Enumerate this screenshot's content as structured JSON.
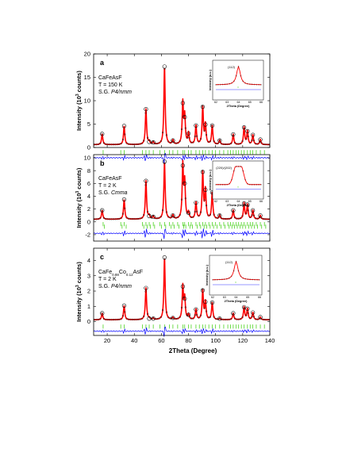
{
  "chart_data": [
    {
      "type": "line",
      "panel_label": "a",
      "ylabel_parts": [
        "Intensity (10",
        "3",
        " counts)"
      ],
      "xlim": [
        10,
        140
      ],
      "ylim": [
        0,
        20
      ],
      "yticks": [
        0,
        5,
        10,
        15,
        20
      ],
      "info_lines": [
        [
          {
            "t": "CaFeAsF"
          }
        ],
        [
          {
            "t": "T = 150 K"
          }
        ],
        [
          {
            "t": "S.G. "
          },
          {
            "t": "P4/nmm",
            "i": true
          }
        ]
      ],
      "peaks": [
        {
          "x": 16.3,
          "y": 2.9
        },
        {
          "x": 32.5,
          "y": 4.6
        },
        {
          "x": 48.6,
          "y": 8.2
        },
        {
          "x": 51,
          "y": 1.2
        },
        {
          "x": 54,
          "y": 1.1
        },
        {
          "x": 62.3,
          "y": 17.3
        },
        {
          "x": 68.5,
          "y": 1.5
        },
        {
          "x": 75.8,
          "y": 9.5
        },
        {
          "x": 77.2,
          "y": 6.5
        },
        {
          "x": 80,
          "y": 3.0
        },
        {
          "x": 85.5,
          "y": 4.7
        },
        {
          "x": 90.5,
          "y": 8.7
        },
        {
          "x": 92.5,
          "y": 4.9
        },
        {
          "x": 97.5,
          "y": 4.7
        },
        {
          "x": 103,
          "y": 1.5
        },
        {
          "x": 113,
          "y": 2.8
        },
        {
          "x": 121,
          "y": 4.3
        },
        {
          "x": 123.5,
          "y": 3.5
        },
        {
          "x": 127.5,
          "y": 2.7
        },
        {
          "x": 133,
          "y": 1.7
        }
      ],
      "background": 0.6,
      "bragg_rows": [
        [
          17,
          30,
          32.5,
          46,
          48.6,
          51,
          54,
          59,
          62.3,
          66,
          68.5,
          72,
          75.8,
          77.2,
          80,
          82,
          85.5,
          88,
          90.5,
          92.5,
          95,
          97.5,
          100,
          103,
          106,
          109,
          111,
          113,
          115,
          117,
          119,
          121,
          123.5,
          125.5,
          127.5,
          130,
          133,
          136
        ]
      ],
      "bragg_y": [
        -1.0
      ],
      "diff_y": -2.2,
      "inset": {
        "ylabel": "Intensity (a.u.)",
        "xlabel": "2Theta (Degree)",
        "xticks": [
          "62",
          "63",
          "64",
          "65",
          "66"
        ],
        "peak_label": "(112)",
        "split": false
      }
    },
    {
      "type": "line",
      "panel_label": "b",
      "ylabel_parts": [
        "Intensity (10",
        "3",
        " counts)"
      ],
      "xlim": [
        10,
        140
      ],
      "ylim": [
        -3,
        10.5
      ],
      "yticks": [
        -2,
        0,
        2,
        4,
        6,
        8,
        10
      ],
      "info_lines": [
        [
          {
            "t": "CaFeAsF"
          }
        ],
        [
          {
            "t": "T = 2 K"
          }
        ],
        [
          {
            "t": "S.G. "
          },
          {
            "t": "Cmma",
            "i": true
          }
        ]
      ],
      "peaks": [
        {
          "x": 16.3,
          "y": 1.8
        },
        {
          "x": 32.5,
          "y": 3.5
        },
        {
          "x": 48.6,
          "y": 6.4
        },
        {
          "x": 51,
          "y": 0.9
        },
        {
          "x": 54,
          "y": 0.8
        },
        {
          "x": 62.3,
          "y": 9.4
        },
        {
          "x": 68.5,
          "y": 1.0
        },
        {
          "x": 75.8,
          "y": 8.8
        },
        {
          "x": 77.2,
          "y": 6.0
        },
        {
          "x": 80,
          "y": 1.4
        },
        {
          "x": 85.5,
          "y": 3.0
        },
        {
          "x": 90.5,
          "y": 7.8
        },
        {
          "x": 92.5,
          "y": 5.0
        },
        {
          "x": 97.5,
          "y": 4.6
        },
        {
          "x": 103,
          "y": 1.0
        },
        {
          "x": 113,
          "y": 1.8
        },
        {
          "x": 121,
          "y": 2.9
        },
        {
          "x": 123.5,
          "y": 2.7
        },
        {
          "x": 127.5,
          "y": 1.8
        },
        {
          "x": 133,
          "y": 1.0
        }
      ],
      "background": 0.4,
      "bragg_rows": [
        [
          17,
          30,
          32.5,
          46,
          48.6,
          51,
          54,
          59,
          62.3,
          66,
          68.5,
          72,
          75.8,
          77.2,
          80,
          82,
          85.5,
          88,
          90.5,
          92.5,
          95,
          97.5,
          100,
          103,
          106,
          109,
          111,
          113,
          115,
          117,
          119,
          121,
          123.5,
          125.5,
          127.5,
          130,
          133,
          136
        ],
        [
          18,
          31,
          34,
          47,
          49.5,
          52,
          55,
          60,
          63.2,
          67,
          69.5,
          73,
          76.5,
          78,
          81,
          83,
          86.5,
          89,
          91.5,
          93.5,
          96,
          98.5,
          101,
          104,
          107,
          110,
          112,
          114,
          116,
          118,
          120,
          122,
          124.5,
          126.5,
          128.5,
          131,
          134,
          137
        ]
      ],
      "bragg_y": [
        -0.35,
        -0.75
      ],
      "diff_y": -1.8,
      "inset": {
        "ylabel": "Intensity (a.u.)",
        "xlabel": "2Theta (Degree)",
        "xticks": [
          "62",
          "63",
          "64",
          "65",
          "66"
        ],
        "peak_label": "(220)/(202)",
        "split": true
      }
    },
    {
      "type": "line",
      "panel_label": "c",
      "ylabel_parts": [
        "Intensity (10",
        "3",
        " counts)"
      ],
      "xlim": [
        10,
        140
      ],
      "ylim": [
        -0.9,
        4.8
      ],
      "yticks": [
        0,
        1,
        2,
        3,
        4
      ],
      "info_lines": [
        [
          {
            "t": "CaFe"
          },
          {
            "t": "0.88",
            "sub": true
          },
          {
            "t": "Co"
          },
          {
            "t": "0.12",
            "sub": true
          },
          {
            "t": "AsF"
          }
        ],
        [
          {
            "t": "T = 2 K"
          }
        ],
        [
          {
            "t": "S.G. "
          },
          {
            "t": "P4/nmm",
            "i": true
          }
        ]
      ],
      "peaks": [
        {
          "x": 16.3,
          "y": 0.55
        },
        {
          "x": 32.5,
          "y": 1.05
        },
        {
          "x": 48.6,
          "y": 2.2
        },
        {
          "x": 51,
          "y": 0.2
        },
        {
          "x": 54,
          "y": 0.2
        },
        {
          "x": 62.3,
          "y": 4.2
        },
        {
          "x": 68.5,
          "y": 0.25
        },
        {
          "x": 75.8,
          "y": 2.3
        },
        {
          "x": 77.2,
          "y": 1.5
        },
        {
          "x": 80,
          "y": 0.45
        },
        {
          "x": 85.5,
          "y": 0.8
        },
        {
          "x": 90.5,
          "y": 2.05
        },
        {
          "x": 92.5,
          "y": 1.3
        },
        {
          "x": 97.5,
          "y": 1.25
        },
        {
          "x": 103,
          "y": 0.2
        },
        {
          "x": 113,
          "y": 0.55
        },
        {
          "x": 121,
          "y": 0.95
        },
        {
          "x": 123.5,
          "y": 0.85
        },
        {
          "x": 127.5,
          "y": 0.6
        },
        {
          "x": 133,
          "y": 0.3
        }
      ],
      "background": 0.12,
      "bragg_rows": [
        [
          17,
          30,
          32.5,
          46,
          48.6,
          51,
          54,
          59,
          62.3,
          66,
          68.5,
          72,
          75.8,
          77.2,
          80,
          82,
          85.5,
          88,
          90.5,
          92.5,
          95,
          97.5,
          100,
          103,
          106,
          109,
          111,
          113,
          115,
          117,
          119,
          121,
          123.5,
          125.5,
          127.5,
          130,
          133,
          136
        ]
      ],
      "bragg_y": [
        -0.32
      ],
      "diff_y": -0.62,
      "inset": {
        "ylabel": "Intensity (a.u.)",
        "xlabel": "2Theta (Degree)",
        "xticks": [
          "62",
          "63",
          "64",
          "65",
          "66"
        ],
        "peak_label": "(112)",
        "split": false
      }
    }
  ],
  "x_axis": {
    "label": "2Theta (Degree)",
    "ticks": [
      20,
      40,
      60,
      80,
      100,
      120,
      140
    ]
  },
  "colors": {
    "observed": "#000000",
    "calculated": "#ff0000",
    "difference": "#0000ff",
    "bragg": "#33cc00"
  }
}
